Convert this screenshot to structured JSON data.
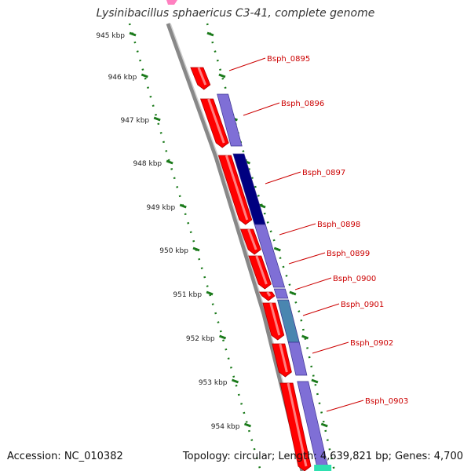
{
  "title": "Lysinibacillus sphaericus C3-41, complete genome",
  "accession_text": "Accession: NC_010382",
  "summary_text": "Topology: circular; Length: 4,639,821 bp; Genes: 4,700",
  "colors": {
    "forward_gene": "#ff0000",
    "cds_feature": "#7f6fd6",
    "cds_dark": "#000080",
    "cds_teal": "#4a86b0",
    "label": "#cc0000",
    "tick": "#1a7a1a",
    "backbone": "#888888"
  },
  "ticks": [
    {
      "label": "945 kbp"
    },
    {
      "label": "946 kbp"
    },
    {
      "label": "947 kbp"
    },
    {
      "label": "948 kbp"
    },
    {
      "label": "949 kbp"
    },
    {
      "label": "950 kbp"
    },
    {
      "label": "951 kbp"
    },
    {
      "label": "952 kbp"
    },
    {
      "label": "953 kbp"
    },
    {
      "label": "954 kbp"
    }
  ],
  "gene_labels": [
    {
      "name": "Bsph_0895"
    },
    {
      "name": "Bsph_0896"
    },
    {
      "name": "Bsph_0897"
    },
    {
      "name": "Bsph_0898"
    },
    {
      "name": "Bsph_0899"
    },
    {
      "name": "Bsph_0900"
    },
    {
      "name": "Bsph_0901"
    },
    {
      "name": "Bsph_0902"
    },
    {
      "name": "Bsph_0903"
    }
  ]
}
